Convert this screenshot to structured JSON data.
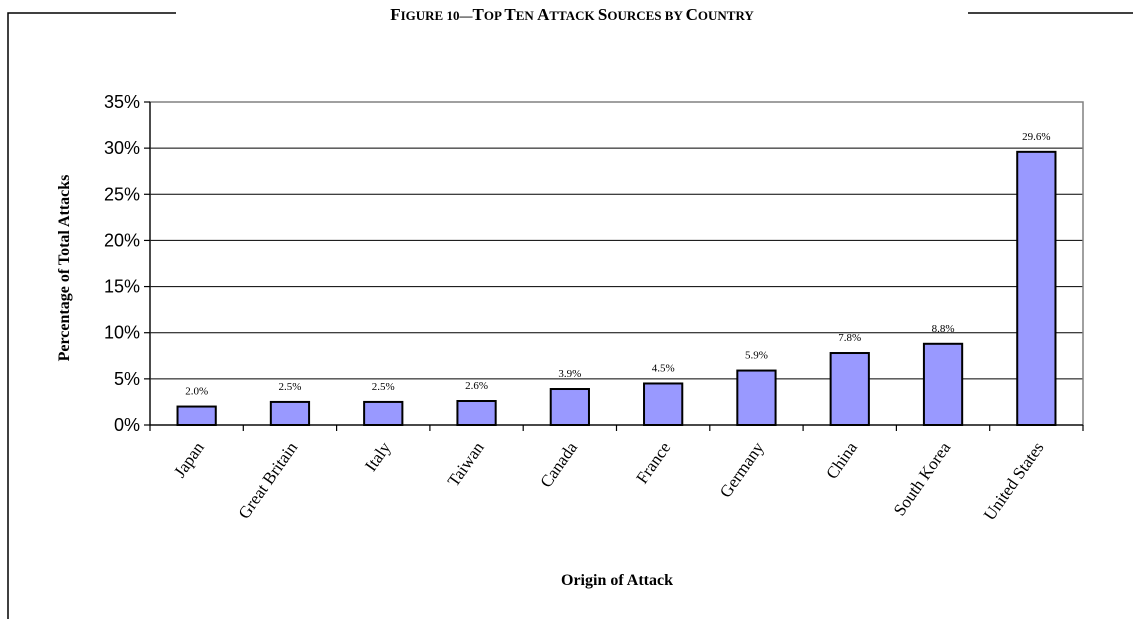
{
  "figure": {
    "title_parts": [
      {
        "text": "F",
        "size": "large"
      },
      {
        "text": "IGURE 10—",
        "size": "small"
      },
      {
        "text": "T",
        "size": "large"
      },
      {
        "text": "OP ",
        "size": "small"
      },
      {
        "text": "T",
        "size": "large"
      },
      {
        "text": "EN ",
        "size": "small"
      },
      {
        "text": "A",
        "size": "large"
      },
      {
        "text": "TTACK ",
        "size": "small"
      },
      {
        "text": "S",
        "size": "large"
      },
      {
        "text": "OURCES BY ",
        "size": "small"
      },
      {
        "text": "C",
        "size": "large"
      },
      {
        "text": "OUNTRY",
        "size": "small"
      }
    ]
  },
  "chart_data": {
    "type": "bar",
    "title": "FIGURE 10—TOP TEN ATTACK SOURCES BY COUNTRY",
    "categories": [
      "Japan",
      "Great Britain",
      "Italy",
      "Taiwan",
      "Canada",
      "France",
      "Germany",
      "China",
      "South Korea",
      "United States"
    ],
    "values": [
      2.0,
      2.5,
      2.5,
      2.6,
      3.9,
      4.5,
      5.9,
      7.8,
      8.8,
      29.6
    ],
    "data_labels": [
      "2.0%",
      "2.5%",
      "2.5%",
      "2.6%",
      "3.9%",
      "4.5%",
      "5.9%",
      "7.8%",
      "8.8%",
      "29.6%"
    ],
    "xlabel": "Origin of Attack",
    "ylabel": "Percentage of Total Attacks",
    "ylim": [
      0,
      35
    ],
    "yticks": [
      0,
      5,
      10,
      15,
      20,
      25,
      30,
      35
    ],
    "ytick_labels": [
      "0%",
      "5%",
      "10%",
      "15%",
      "20%",
      "25%",
      "30%",
      "35%"
    ],
    "grid": true,
    "bar_color": "#9999ff",
    "legend": "none"
  }
}
